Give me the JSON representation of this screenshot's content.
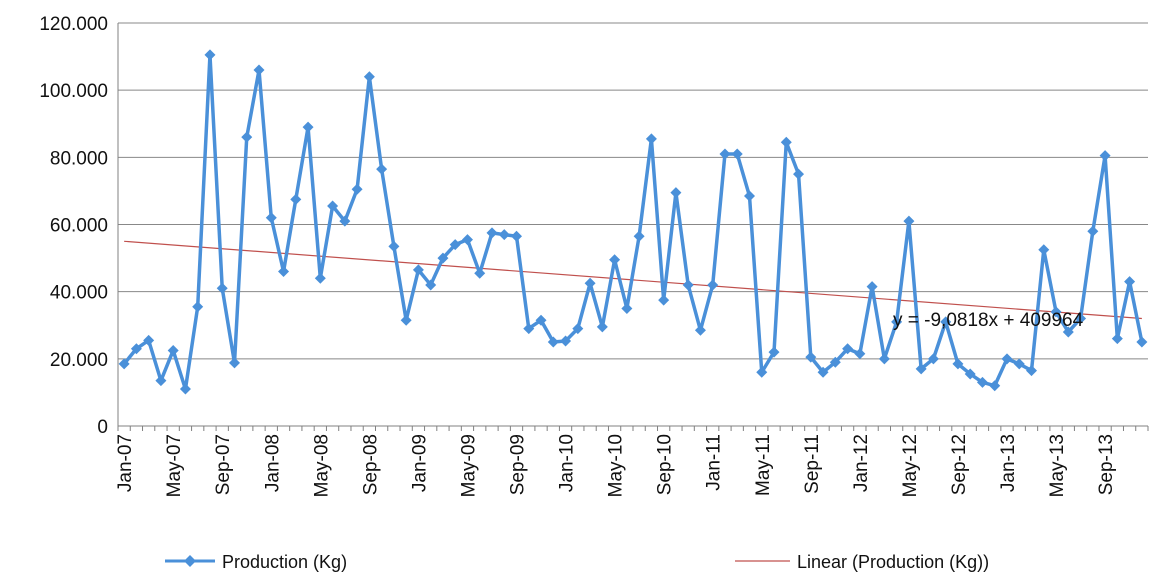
{
  "chart_data": {
    "type": "line",
    "title": "",
    "xlabel": "",
    "ylabel": "",
    "ylim": [
      0,
      120000
    ],
    "y_ticks": [
      {
        "value": 0,
        "label": "0"
      },
      {
        "value": 20000,
        "label": "20.000"
      },
      {
        "value": 40000,
        "label": "40.000"
      },
      {
        "value": 60000,
        "label": "60.000"
      },
      {
        "value": 80000,
        "label": "80.000"
      },
      {
        "value": 100000,
        "label": "100.000"
      },
      {
        "value": 120000,
        "label": "120.000"
      }
    ],
    "x_tick_labels": [
      "Jan-07",
      "May-07",
      "Sep-07",
      "Jan-08",
      "May-08",
      "Sep-08",
      "Jan-09",
      "May-09",
      "Sep-09",
      "Jan-10",
      "May-10",
      "Sep-10",
      "Jan-11",
      "May-11",
      "Sep-11",
      "Jan-12",
      "May-12",
      "Sep-12",
      "Jan-13",
      "May-13",
      "Sep-13"
    ],
    "grid": "horizontal",
    "legend_position": "bottom",
    "colors": {
      "series": "#4a90d9",
      "trend": "#c0504d",
      "grid": "#888888",
      "axis": "#808080"
    },
    "series": [
      {
        "name": "Production (Kg)",
        "marker": "diamond",
        "values": [
          18500,
          23000,
          25500,
          13500,
          22500,
          11000,
          35500,
          110500,
          41000,
          18800,
          86000,
          106000,
          62000,
          46000,
          67500,
          89000,
          44000,
          65500,
          61000,
          70500,
          104000,
          76500,
          53500,
          31500,
          46500,
          42000,
          50000,
          54000,
          55500,
          45500,
          57500,
          57000,
          56500,
          29000,
          31500,
          25000,
          25300,
          29000,
          42500,
          29500,
          49500,
          35000,
          56500,
          85500,
          37500,
          69500,
          42000,
          28500,
          42000,
          81000,
          81000,
          68500,
          16000,
          22000,
          84500,
          75000,
          20500,
          16000,
          19000,
          23000,
          21500,
          41500,
          20000,
          31000,
          61000,
          17000,
          20000,
          31000,
          18500,
          15500,
          13000,
          12000,
          20000,
          18500,
          16500,
          52500,
          34000,
          28000,
          32000,
          58000,
          80500,
          26000,
          43000,
          25000
        ]
      }
    ],
    "trendline": {
      "name": "Linear (Production (Kg))",
      "start": 55000,
      "end": 32000,
      "equation": "y = -9,0818x + 409964"
    }
  }
}
